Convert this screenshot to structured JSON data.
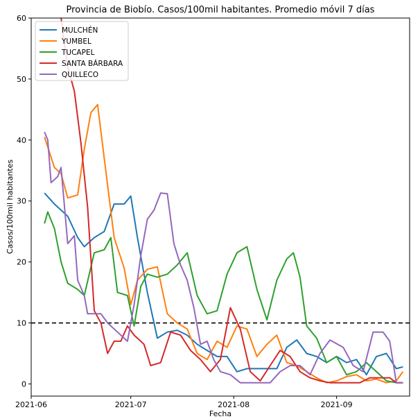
{
  "chart_data": {
    "type": "line",
    "title": "Provincia de Biobío. Casos/100mil habitantes. Promedio móvil 7 días",
    "xlabel": "Fecha",
    "ylabel": "Casos/100mil habitantes",
    "x_start": "2021-06-05",
    "x_end": "2021-09-21",
    "xlim": [
      "2021-06-01",
      "2021-09-23"
    ],
    "ylim": [
      -2,
      60
    ],
    "x_ticks": [
      "2021-06-01",
      "2021-07-01",
      "2021-08-01",
      "2021-09-01"
    ],
    "x_tick_labels": [
      "2021-06",
      "2021-07",
      "2021-08",
      "2021-09"
    ],
    "y_ticks": [
      0,
      10,
      20,
      30,
      40,
      50,
      60
    ],
    "y_tick_labels": [
      "0",
      "10",
      "20",
      "30",
      "40",
      "50",
      "60"
    ],
    "reference_line": {
      "y": 10,
      "style": "dashed",
      "color": "#000000"
    },
    "legend": {
      "position": "top-left"
    },
    "grid": false,
    "series": [
      {
        "name": "MULCHÉN",
        "color": "#1f77b4",
        "points": [
          [
            "2021-06-05",
            31.3
          ],
          [
            "2021-06-08",
            29.5
          ],
          [
            "2021-06-12",
            27.5
          ],
          [
            "2021-06-15",
            24
          ],
          [
            "2021-06-17",
            22.5
          ],
          [
            "2021-06-20",
            24
          ],
          [
            "2021-06-23",
            25
          ],
          [
            "2021-06-26",
            29.5
          ],
          [
            "2021-06-29",
            29.5
          ],
          [
            "2021-07-01",
            30.8
          ],
          [
            "2021-07-03",
            24
          ],
          [
            "2021-07-06",
            15
          ],
          [
            "2021-07-09",
            7.5
          ],
          [
            "2021-07-12",
            8.5
          ],
          [
            "2021-07-15",
            8.8
          ],
          [
            "2021-07-18",
            8
          ],
          [
            "2021-07-21",
            6.5
          ],
          [
            "2021-07-24",
            5.5
          ],
          [
            "2021-07-27",
            4.5
          ],
          [
            "2021-07-30",
            4.5
          ],
          [
            "2021-08-02",
            2
          ],
          [
            "2021-08-05",
            2.5
          ],
          [
            "2021-08-08",
            2.5
          ],
          [
            "2021-08-11",
            2.5
          ],
          [
            "2021-08-14",
            2.5
          ],
          [
            "2021-08-17",
            6
          ],
          [
            "2021-08-20",
            7.2
          ],
          [
            "2021-08-23",
            5
          ],
          [
            "2021-08-26",
            4.5
          ],
          [
            "2021-08-29",
            3.5
          ],
          [
            "2021-09-01",
            4.5
          ],
          [
            "2021-09-04",
            3.5
          ],
          [
            "2021-09-07",
            4
          ],
          [
            "2021-09-10",
            1.5
          ],
          [
            "2021-09-13",
            4.5
          ],
          [
            "2021-09-16",
            5
          ],
          [
            "2021-09-19",
            2.5
          ],
          [
            "2021-09-21",
            2.8
          ]
        ]
      },
      {
        "name": "YUMBEL",
        "color": "#ff7f0e",
        "points": [
          [
            "2021-06-05",
            40.5
          ],
          [
            "2021-06-08",
            35.5
          ],
          [
            "2021-06-10",
            34.5
          ],
          [
            "2021-06-12",
            30.5
          ],
          [
            "2021-06-15",
            31
          ],
          [
            "2021-06-17",
            38.5
          ],
          [
            "2021-06-19",
            44.5
          ],
          [
            "2021-06-21",
            45.8
          ],
          [
            "2021-06-23",
            37
          ],
          [
            "2021-06-26",
            24
          ],
          [
            "2021-06-29",
            19
          ],
          [
            "2021-07-01",
            13
          ],
          [
            "2021-07-03",
            17
          ],
          [
            "2021-07-06",
            18.8
          ],
          [
            "2021-07-09",
            19.2
          ],
          [
            "2021-07-12",
            11.5
          ],
          [
            "2021-07-15",
            10
          ],
          [
            "2021-07-18",
            9
          ],
          [
            "2021-07-21",
            5
          ],
          [
            "2021-07-24",
            4
          ],
          [
            "2021-07-27",
            7
          ],
          [
            "2021-07-30",
            6
          ],
          [
            "2021-08-02",
            9.5
          ],
          [
            "2021-08-05",
            9
          ],
          [
            "2021-08-08",
            4.5
          ],
          [
            "2021-08-11",
            6.5
          ],
          [
            "2021-08-14",
            8
          ],
          [
            "2021-08-17",
            3.5
          ],
          [
            "2021-08-20",
            3
          ],
          [
            "2021-08-23",
            2
          ],
          [
            "2021-08-26",
            1
          ],
          [
            "2021-08-29",
            0.2
          ],
          [
            "2021-09-01",
            0.5
          ],
          [
            "2021-09-04",
            1.2
          ],
          [
            "2021-09-07",
            1.5
          ],
          [
            "2021-09-10",
            0.5
          ],
          [
            "2021-09-13",
            0.8
          ],
          [
            "2021-09-16",
            0.2
          ],
          [
            "2021-09-19",
            0.5
          ],
          [
            "2021-09-21",
            2
          ]
        ]
      },
      {
        "name": "TUCAPEL",
        "color": "#2ca02c",
        "points": [
          [
            "2021-06-05",
            26.3
          ],
          [
            "2021-06-06",
            28.2
          ],
          [
            "2021-06-08",
            25.5
          ],
          [
            "2021-06-10",
            20
          ],
          [
            "2021-06-12",
            16.5
          ],
          [
            "2021-06-15",
            15.5
          ],
          [
            "2021-06-17",
            14.5
          ],
          [
            "2021-06-20",
            21.5
          ],
          [
            "2021-06-23",
            22
          ],
          [
            "2021-06-25",
            24
          ],
          [
            "2021-06-27",
            15
          ],
          [
            "2021-06-30",
            14.5
          ],
          [
            "2021-07-02",
            9.5
          ],
          [
            "2021-07-04",
            16
          ],
          [
            "2021-07-06",
            18
          ],
          [
            "2021-07-09",
            17.5
          ],
          [
            "2021-07-12",
            18
          ],
          [
            "2021-07-15",
            19.5
          ],
          [
            "2021-07-18",
            21.5
          ],
          [
            "2021-07-21",
            14.5
          ],
          [
            "2021-07-24",
            11.5
          ],
          [
            "2021-07-27",
            12
          ],
          [
            "2021-07-30",
            18
          ],
          [
            "2021-08-02",
            21.5
          ],
          [
            "2021-08-05",
            22.5
          ],
          [
            "2021-08-08",
            15.5
          ],
          [
            "2021-08-11",
            10.5
          ],
          [
            "2021-08-14",
            17
          ],
          [
            "2021-08-17",
            20.5
          ],
          [
            "2021-08-19",
            21.5
          ],
          [
            "2021-08-21",
            17.5
          ],
          [
            "2021-08-23",
            9.5
          ],
          [
            "2021-08-26",
            7.5
          ],
          [
            "2021-08-29",
            3.5
          ],
          [
            "2021-09-01",
            4.5
          ],
          [
            "2021-09-04",
            1.5
          ],
          [
            "2021-09-07",
            2
          ],
          [
            "2021-09-10",
            3.5
          ],
          [
            "2021-09-13",
            2
          ],
          [
            "2021-09-16",
            0.5
          ],
          [
            "2021-09-19",
            0.2
          ],
          [
            "2021-09-21",
            0.2
          ]
        ]
      },
      {
        "name": "SANTA BÁRBARA",
        "color": "#d62728",
        "points": [
          [
            "2021-06-10",
            60
          ],
          [
            "2021-06-12",
            52
          ],
          [
            "2021-06-14",
            48
          ],
          [
            "2021-06-16",
            39.5
          ],
          [
            "2021-06-18",
            29
          ],
          [
            "2021-06-20",
            12
          ],
          [
            "2021-06-22",
            10
          ],
          [
            "2021-06-24",
            5
          ],
          [
            "2021-06-26",
            7
          ],
          [
            "2021-06-28",
            7
          ],
          [
            "2021-06-30",
            9.5
          ],
          [
            "2021-07-02",
            8
          ],
          [
            "2021-07-05",
            6.5
          ],
          [
            "2021-07-07",
            3
          ],
          [
            "2021-07-10",
            3.5
          ],
          [
            "2021-07-13",
            8.5
          ],
          [
            "2021-07-16",
            8
          ],
          [
            "2021-07-19",
            5.5
          ],
          [
            "2021-07-22",
            4
          ],
          [
            "2021-07-25",
            2
          ],
          [
            "2021-07-28",
            4
          ],
          [
            "2021-07-31",
            12.5
          ],
          [
            "2021-08-03",
            9
          ],
          [
            "2021-08-06",
            2
          ],
          [
            "2021-08-09",
            0.5
          ],
          [
            "2021-08-12",
            3
          ],
          [
            "2021-08-15",
            5.5
          ],
          [
            "2021-08-18",
            4.5
          ],
          [
            "2021-08-21",
            2
          ],
          [
            "2021-08-24",
            1
          ],
          [
            "2021-08-27",
            0.5
          ],
          [
            "2021-08-30",
            0.2
          ],
          [
            "2021-09-02",
            0.2
          ],
          [
            "2021-09-05",
            0.2
          ],
          [
            "2021-09-08",
            0.2
          ],
          [
            "2021-09-11",
            1
          ],
          [
            "2021-09-14",
            1
          ],
          [
            "2021-09-17",
            1
          ],
          [
            "2021-09-19",
            0.2
          ],
          [
            "2021-09-21",
            0.2
          ]
        ]
      },
      {
        "name": "QUILLECO",
        "color": "#9467bd",
        "points": [
          [
            "2021-06-05",
            41.3
          ],
          [
            "2021-06-06",
            40
          ],
          [
            "2021-06-07",
            33
          ],
          [
            "2021-06-09",
            34
          ],
          [
            "2021-06-10",
            35.5
          ],
          [
            "2021-06-12",
            23
          ],
          [
            "2021-06-14",
            24.3
          ],
          [
            "2021-06-15",
            17
          ],
          [
            "2021-06-17",
            14.5
          ],
          [
            "2021-06-18",
            11.5
          ],
          [
            "2021-06-20",
            11.5
          ],
          [
            "2021-06-22",
            11.5
          ],
          [
            "2021-06-24",
            10
          ],
          [
            "2021-06-27",
            8.5
          ],
          [
            "2021-06-30",
            7
          ],
          [
            "2021-07-02",
            13
          ],
          [
            "2021-07-04",
            21
          ],
          [
            "2021-07-06",
            27
          ],
          [
            "2021-07-08",
            28.5
          ],
          [
            "2021-07-10",
            31.3
          ],
          [
            "2021-07-12",
            31.2
          ],
          [
            "2021-07-14",
            23
          ],
          [
            "2021-07-16",
            19.5
          ],
          [
            "2021-07-18",
            17
          ],
          [
            "2021-07-20",
            12.5
          ],
          [
            "2021-07-22",
            6.5
          ],
          [
            "2021-07-24",
            7
          ],
          [
            "2021-07-26",
            4
          ],
          [
            "2021-07-28",
            2
          ],
          [
            "2021-07-31",
            1.5
          ],
          [
            "2021-08-03",
            0.2
          ],
          [
            "2021-08-06",
            0.2
          ],
          [
            "2021-08-09",
            0.2
          ],
          [
            "2021-08-12",
            0.2
          ],
          [
            "2021-08-15",
            2
          ],
          [
            "2021-08-18",
            3
          ],
          [
            "2021-08-21",
            3
          ],
          [
            "2021-08-24",
            1.5
          ],
          [
            "2021-08-27",
            5
          ],
          [
            "2021-08-30",
            7.2
          ],
          [
            "2021-09-03",
            6
          ],
          [
            "2021-09-06",
            3
          ],
          [
            "2021-09-09",
            2
          ],
          [
            "2021-09-12",
            8.5
          ],
          [
            "2021-09-15",
            8.5
          ],
          [
            "2021-09-17",
            7
          ],
          [
            "2021-09-19",
            0.2
          ],
          [
            "2021-09-21",
            0.2
          ]
        ]
      }
    ]
  }
}
